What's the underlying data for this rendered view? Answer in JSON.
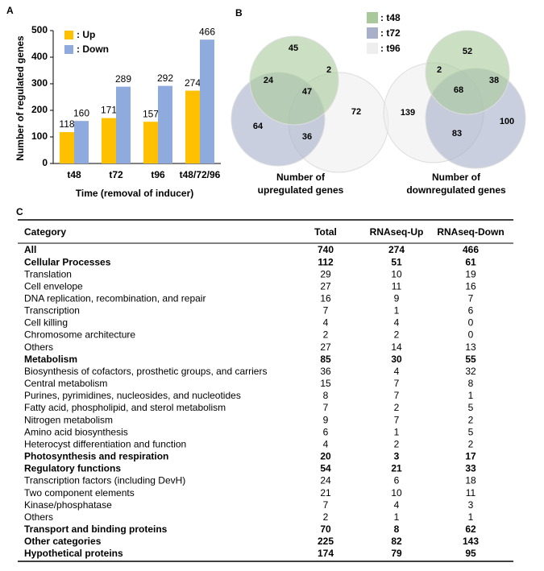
{
  "chart_data": {
    "type": "bar",
    "panel": "A",
    "categories": [
      "t48",
      "t72",
      "t96",
      "t48/72/96"
    ],
    "series": [
      {
        "name": ": Up",
        "color": "#ffc000",
        "values": [
          118,
          171,
          157,
          274
        ]
      },
      {
        "name": ": Down",
        "color": "#8faadc",
        "values": [
          160,
          289,
          292,
          466
        ]
      }
    ],
    "ylabel": "Number of regulated genes",
    "xlabel": "Time (removal of inducer)",
    "ylim": [
      0,
      500
    ],
    "yticks": [
      0,
      100,
      200,
      300,
      400,
      500
    ],
    "grid": false
  },
  "venn": {
    "panel": "B",
    "legend": [
      {
        "name": ": t48",
        "color": "#a9c99a"
      },
      {
        "name": ": t72",
        "color": "#a7afc9"
      },
      {
        "name": ": t96",
        "color": "#eeeeee"
      }
    ],
    "diagrams": [
      {
        "caption": [
          "Number of",
          "upregulated genes"
        ],
        "regions": [
          45,
          2,
          24,
          47,
          72,
          64,
          36
        ]
      },
      {
        "caption": [
          "Number of",
          "downregulated genes"
        ],
        "regions": [
          52,
          2,
          38,
          68,
          139,
          100,
          83
        ]
      }
    ]
  },
  "table": {
    "panel": "C",
    "header": [
      "Category",
      "Total",
      "RNAseq-Up",
      "RNAseq-Down"
    ],
    "rows": [
      {
        "bold": true,
        "cells": [
          "All",
          740,
          274,
          466
        ]
      },
      {
        "bold": true,
        "cells": [
          "Cellular Processes",
          112,
          51,
          61
        ]
      },
      {
        "bold": false,
        "cells": [
          "Translation",
          29,
          10,
          19
        ]
      },
      {
        "bold": false,
        "cells": [
          "Cell envelope",
          27,
          11,
          16
        ]
      },
      {
        "bold": false,
        "cells": [
          "DNA replication, recombination, and repair",
          16,
          9,
          7
        ]
      },
      {
        "bold": false,
        "cells": [
          "Transcription",
          7,
          1,
          6
        ]
      },
      {
        "bold": false,
        "cells": [
          "Cell killing",
          4,
          4,
          0
        ]
      },
      {
        "bold": false,
        "cells": [
          "Chromosome architecture",
          2,
          2,
          0
        ]
      },
      {
        "bold": false,
        "cells": [
          "Others",
          27,
          14,
          13
        ]
      },
      {
        "bold": true,
        "cells": [
          "Metabolism",
          85,
          30,
          55
        ]
      },
      {
        "bold": false,
        "cells": [
          "Biosynthesis of cofactors, prosthetic groups, and carriers",
          36,
          4,
          32
        ]
      },
      {
        "bold": false,
        "cells": [
          "Central metabolism",
          15,
          7,
          8
        ]
      },
      {
        "bold": false,
        "cells": [
          "Purines, pyrimidines, nucleosides, and nucleotides",
          8,
          7,
          1
        ]
      },
      {
        "bold": false,
        "cells": [
          "Fatty acid, phospholipid, and sterol metabolism",
          7,
          2,
          5
        ]
      },
      {
        "bold": false,
        "cells": [
          "Nitrogen metabolism",
          9,
          7,
          2
        ]
      },
      {
        "bold": false,
        "cells": [
          "Amino acid biosynthesis",
          6,
          1,
          5
        ]
      },
      {
        "bold": false,
        "cells": [
          "Heterocyst differentiation and function",
          4,
          2,
          2
        ]
      },
      {
        "bold": true,
        "cells": [
          "Photosynthesis and respiration",
          20,
          3,
          17
        ]
      },
      {
        "bold": true,
        "cells": [
          "Regulatory functions",
          54,
          21,
          33
        ]
      },
      {
        "bold": false,
        "cells": [
          "Transcription factors (including DevH)",
          24,
          6,
          18
        ]
      },
      {
        "bold": false,
        "cells": [
          "Two component elements",
          21,
          10,
          11
        ]
      },
      {
        "bold": false,
        "cells": [
          "Kinase/phosphatase",
          7,
          4,
          3
        ]
      },
      {
        "bold": false,
        "cells": [
          "Others",
          2,
          1,
          1
        ]
      },
      {
        "bold": true,
        "cells": [
          "Transport and binding proteins",
          70,
          8,
          62
        ]
      },
      {
        "bold": true,
        "cells": [
          "Other categories",
          225,
          82,
          143
        ]
      },
      {
        "bold": true,
        "cells": [
          "Hypothetical proteins",
          174,
          79,
          95
        ]
      }
    ]
  }
}
